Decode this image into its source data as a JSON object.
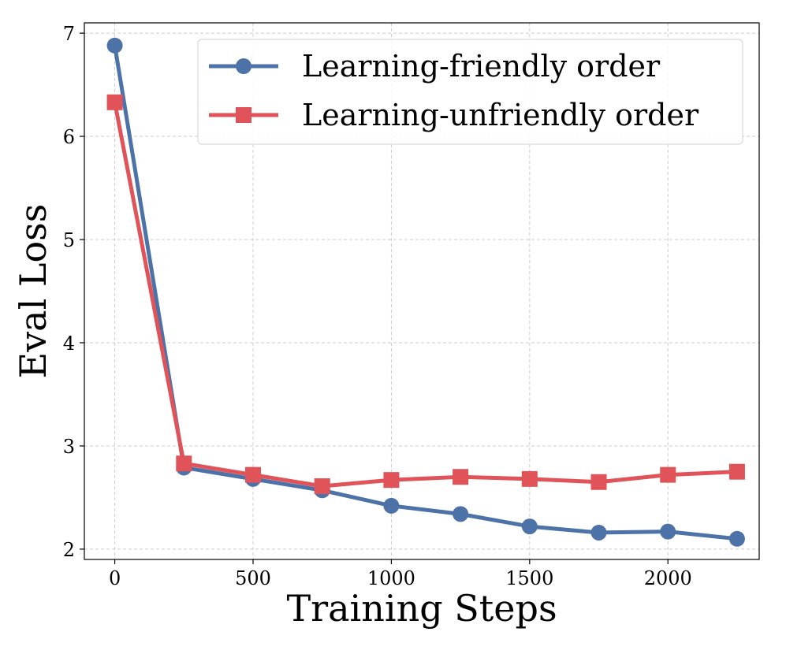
{
  "chart_data": {
    "type": "line",
    "xlabel": "Training Steps",
    "ylabel": "Eval Loss",
    "xlim": [
      -110,
      2330
    ],
    "ylim": [
      1.9,
      7.1
    ],
    "xticks": [
      0,
      500,
      1000,
      1500,
      2000
    ],
    "yticks": [
      2,
      3,
      4,
      5,
      6,
      7
    ],
    "grid": true,
    "legend_position": "top-right",
    "x": [
      0,
      250,
      500,
      750,
      1000,
      1250,
      1500,
      1750,
      2000,
      2250
    ],
    "series": [
      {
        "name": "Learning-friendly order",
        "color": "#4c72a8",
        "marker": "circle",
        "values": [
          6.88,
          2.79,
          2.68,
          2.57,
          2.42,
          2.34,
          2.22,
          2.16,
          2.17,
          2.1
        ]
      },
      {
        "name": "Learning-unfriendly order",
        "color": "#e05359",
        "marker": "square",
        "values": [
          6.33,
          2.83,
          2.72,
          2.61,
          2.67,
          2.7,
          2.68,
          2.65,
          2.72,
          2.75
        ]
      }
    ]
  }
}
